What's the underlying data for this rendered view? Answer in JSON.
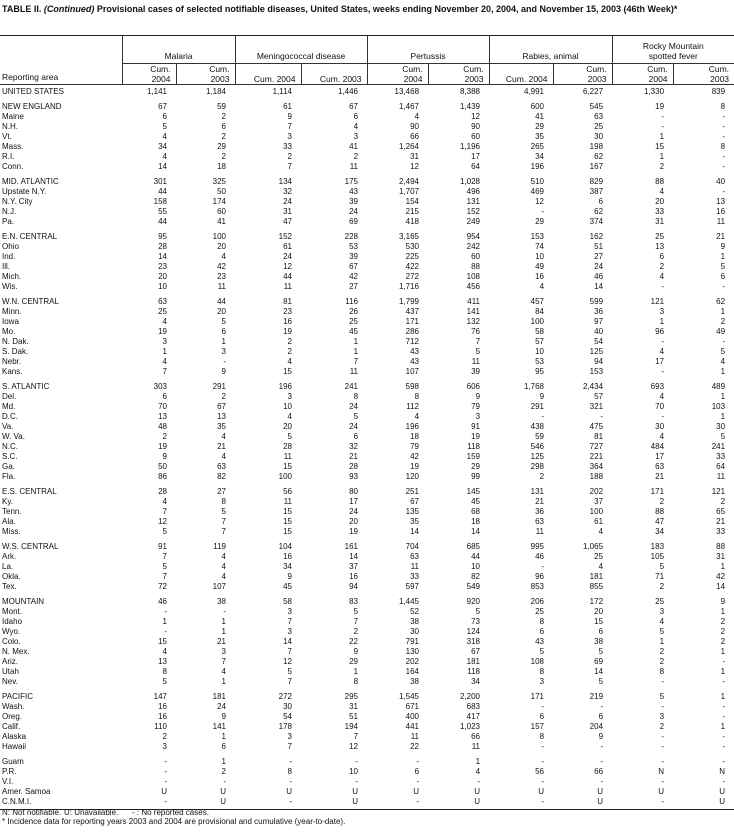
{
  "title": {
    "prefix": "TABLE II. ",
    "continued": "(Continued)",
    "text": " Provisional cases of selected notifiable diseases, United States, weeks ending November 20, 2004, and November 15, 2003 (46th Week)*"
  },
  "header": {
    "area_label": "Reporting area",
    "diseases": [
      "Malaria",
      "Meningococcal disease",
      "Pertussis",
      "Rabies, animal",
      "Rocky Mountain spotted fever"
    ],
    "subcols": [
      "Cum. 2004",
      "Cum. 2003"
    ]
  },
  "united_states": {
    "area": "UNITED STATES",
    "values": [
      "1,141",
      "1,184",
      "1,114",
      "1,446",
      "13,468",
      "8,388",
      "4,991",
      "6,227",
      "1,330",
      "839"
    ]
  },
  "groups": [
    {
      "rows": [
        {
          "area": "NEW ENGLAND",
          "values": [
            "67",
            "59",
            "61",
            "67",
            "1,467",
            "1,439",
            "600",
            "545",
            "19",
            "8"
          ]
        },
        {
          "area": "Maine",
          "values": [
            "6",
            "2",
            "9",
            "6",
            "4",
            "12",
            "41",
            "63",
            "-",
            "-"
          ]
        },
        {
          "area": "N.H.",
          "values": [
            "5",
            "6",
            "7",
            "4",
            "90",
            "90",
            "29",
            "25",
            "-",
            "-"
          ]
        },
        {
          "area": "Vt.",
          "values": [
            "4",
            "2",
            "3",
            "3",
            "66",
            "60",
            "35",
            "30",
            "1",
            "-"
          ]
        },
        {
          "area": "Mass.",
          "values": [
            "34",
            "29",
            "33",
            "41",
            "1,264",
            "1,196",
            "265",
            "198",
            "15",
            "8"
          ]
        },
        {
          "area": "R.I.",
          "values": [
            "4",
            "2",
            "2",
            "2",
            "31",
            "17",
            "34",
            "62",
            "1",
            "-"
          ]
        },
        {
          "area": "Conn.",
          "values": [
            "14",
            "18",
            "7",
            "11",
            "12",
            "64",
            "196",
            "167",
            "2",
            "-"
          ]
        }
      ]
    },
    {
      "rows": [
        {
          "area": "MID. ATLANTIC",
          "values": [
            "301",
            "325",
            "134",
            "175",
            "2,494",
            "1,028",
            "510",
            "829",
            "88",
            "40"
          ]
        },
        {
          "area": "Upstate N.Y.",
          "values": [
            "44",
            "50",
            "32",
            "43",
            "1,707",
            "496",
            "469",
            "387",
            "4",
            "-"
          ]
        },
        {
          "area": "N.Y. City",
          "values": [
            "158",
            "174",
            "24",
            "39",
            "154",
            "131",
            "12",
            "6",
            "20",
            "13"
          ]
        },
        {
          "area": "N.J.",
          "values": [
            "55",
            "60",
            "31",
            "24",
            "215",
            "152",
            "-",
            "62",
            "33",
            "16"
          ]
        },
        {
          "area": "Pa.",
          "values": [
            "44",
            "41",
            "47",
            "69",
            "418",
            "249",
            "29",
            "374",
            "31",
            "11"
          ]
        }
      ]
    },
    {
      "rows": [
        {
          "area": "E.N. CENTRAL",
          "values": [
            "95",
            "100",
            "152",
            "228",
            "3,165",
            "954",
            "153",
            "162",
            "25",
            "21"
          ]
        },
        {
          "area": "Ohio",
          "values": [
            "28",
            "20",
            "61",
            "53",
            "530",
            "242",
            "74",
            "51",
            "13",
            "9"
          ]
        },
        {
          "area": "Ind.",
          "values": [
            "14",
            "4",
            "24",
            "39",
            "225",
            "60",
            "10",
            "27",
            "6",
            "1"
          ]
        },
        {
          "area": "Ill.",
          "values": [
            "23",
            "42",
            "12",
            "67",
            "422",
            "88",
            "49",
            "24",
            "2",
            "5"
          ]
        },
        {
          "area": "Mich.",
          "values": [
            "20",
            "23",
            "44",
            "42",
            "272",
            "108",
            "16",
            "46",
            "4",
            "6"
          ]
        },
        {
          "area": "Wis.",
          "values": [
            "10",
            "11",
            "11",
            "27",
            "1,716",
            "456",
            "4",
            "14",
            "-",
            "-"
          ]
        }
      ]
    },
    {
      "rows": [
        {
          "area": "W.N. CENTRAL",
          "values": [
            "63",
            "44",
            "81",
            "116",
            "1,799",
            "411",
            "457",
            "599",
            "121",
            "62"
          ]
        },
        {
          "area": "Minn.",
          "values": [
            "25",
            "20",
            "23",
            "26",
            "437",
            "141",
            "84",
            "36",
            "3",
            "1"
          ]
        },
        {
          "area": "Iowa",
          "values": [
            "4",
            "5",
            "16",
            "25",
            "171",
            "132",
            "100",
            "97",
            "1",
            "2"
          ]
        },
        {
          "area": "Mo.",
          "values": [
            "19",
            "6",
            "19",
            "45",
            "286",
            "76",
            "58",
            "40",
            "96",
            "49"
          ]
        },
        {
          "area": "N. Dak.",
          "values": [
            "3",
            "1",
            "2",
            "1",
            "712",
            "7",
            "57",
            "54",
            "-",
            "-"
          ]
        },
        {
          "area": "S. Dak.",
          "values": [
            "1",
            "3",
            "2",
            "1",
            "43",
            "5",
            "10",
            "125",
            "4",
            "5"
          ]
        },
        {
          "area": "Nebr.",
          "values": [
            "4",
            "-",
            "4",
            "7",
            "43",
            "11",
            "53",
            "94",
            "17",
            "4"
          ]
        },
        {
          "area": "Kans.",
          "values": [
            "7",
            "9",
            "15",
            "11",
            "107",
            "39",
            "95",
            "153",
            "-",
            "1"
          ]
        }
      ]
    },
    {
      "rows": [
        {
          "area": "S. ATLANTIC",
          "values": [
            "303",
            "291",
            "196",
            "241",
            "598",
            "606",
            "1,768",
            "2,434",
            "693",
            "489"
          ]
        },
        {
          "area": "Del.",
          "values": [
            "6",
            "2",
            "3",
            "8",
            "8",
            "9",
            "9",
            "57",
            "4",
            "1"
          ]
        },
        {
          "area": "Md.",
          "values": [
            "70",
            "67",
            "10",
            "24",
            "112",
            "79",
            "291",
            "321",
            "70",
            "103"
          ]
        },
        {
          "area": "D.C.",
          "values": [
            "13",
            "13",
            "4",
            "5",
            "4",
            "3",
            "-",
            "-",
            "-",
            "1"
          ]
        },
        {
          "area": "Va.",
          "values": [
            "48",
            "35",
            "20",
            "24",
            "196",
            "91",
            "438",
            "475",
            "30",
            "30"
          ]
        },
        {
          "area": "W. Va.",
          "values": [
            "2",
            "4",
            "5",
            "6",
            "18",
            "19",
            "59",
            "81",
            "4",
            "5"
          ]
        },
        {
          "area": "N.C.",
          "values": [
            "19",
            "21",
            "28",
            "32",
            "79",
            "118",
            "546",
            "727",
            "484",
            "241"
          ]
        },
        {
          "area": "S.C.",
          "values": [
            "9",
            "4",
            "11",
            "21",
            "42",
            "159",
            "125",
            "221",
            "17",
            "33"
          ]
        },
        {
          "area": "Ga.",
          "values": [
            "50",
            "63",
            "15",
            "28",
            "19",
            "29",
            "298",
            "364",
            "63",
            "64"
          ]
        },
        {
          "area": "Fla.",
          "values": [
            "86",
            "82",
            "100",
            "93",
            "120",
            "99",
            "2",
            "188",
            "21",
            "11"
          ]
        }
      ]
    },
    {
      "rows": [
        {
          "area": "E.S. CENTRAL",
          "values": [
            "28",
            "27",
            "56",
            "80",
            "251",
            "145",
            "131",
            "202",
            "171",
            "121"
          ]
        },
        {
          "area": "Ky.",
          "values": [
            "4",
            "8",
            "11",
            "17",
            "67",
            "45",
            "21",
            "37",
            "2",
            "2"
          ]
        },
        {
          "area": "Tenn.",
          "values": [
            "7",
            "5",
            "15",
            "24",
            "135",
            "68",
            "36",
            "100",
            "88",
            "65"
          ]
        },
        {
          "area": "Ala.",
          "values": [
            "12",
            "7",
            "15",
            "20",
            "35",
            "18",
            "63",
            "61",
            "47",
            "21"
          ]
        },
        {
          "area": "Miss.",
          "values": [
            "5",
            "7",
            "15",
            "19",
            "14",
            "14",
            "11",
            "4",
            "34",
            "33"
          ]
        }
      ]
    },
    {
      "rows": [
        {
          "area": "W.S. CENTRAL",
          "values": [
            "91",
            "119",
            "104",
            "161",
            "704",
            "685",
            "995",
            "1,065",
            "183",
            "88"
          ]
        },
        {
          "area": "Ark.",
          "values": [
            "7",
            "4",
            "16",
            "14",
            "63",
            "44",
            "46",
            "25",
            "105",
            "31"
          ]
        },
        {
          "area": "La.",
          "values": [
            "5",
            "4",
            "34",
            "37",
            "11",
            "10",
            "-",
            "4",
            "5",
            "1"
          ]
        },
        {
          "area": "Okla.",
          "values": [
            "7",
            "4",
            "9",
            "16",
            "33",
            "82",
            "96",
            "181",
            "71",
            "42"
          ]
        },
        {
          "area": "Tex.",
          "values": [
            "72",
            "107",
            "45",
            "94",
            "597",
            "549",
            "853",
            "855",
            "2",
            "14"
          ]
        }
      ]
    },
    {
      "rows": [
        {
          "area": "MOUNTAIN",
          "values": [
            "46",
            "38",
            "58",
            "83",
            "1,445",
            "920",
            "206",
            "172",
            "25",
            "9"
          ]
        },
        {
          "area": "Mont.",
          "values": [
            "-",
            "-",
            "3",
            "5",
            "52",
            "5",
            "25",
            "20",
            "3",
            "1"
          ]
        },
        {
          "area": "Idaho",
          "values": [
            "1",
            "1",
            "7",
            "7",
            "38",
            "73",
            "8",
            "15",
            "4",
            "2"
          ]
        },
        {
          "area": "Wyo.",
          "values": [
            "-",
            "1",
            "3",
            "2",
            "30",
            "124",
            "6",
            "6",
            "5",
            "2"
          ]
        },
        {
          "area": "Colo.",
          "values": [
            "15",
            "21",
            "14",
            "22",
            "791",
            "318",
            "43",
            "38",
            "1",
            "2"
          ]
        },
        {
          "area": "N. Mex.",
          "values": [
            "4",
            "3",
            "7",
            "9",
            "130",
            "67",
            "5",
            "5",
            "2",
            "1"
          ]
        },
        {
          "area": "Ariz.",
          "values": [
            "13",
            "7",
            "12",
            "29",
            "202",
            "181",
            "108",
            "69",
            "2",
            "-"
          ]
        },
        {
          "area": "Utah",
          "values": [
            "8",
            "4",
            "5",
            "1",
            "164",
            "118",
            "8",
            "14",
            "8",
            "1"
          ]
        },
        {
          "area": "Nev.",
          "values": [
            "5",
            "1",
            "7",
            "8",
            "38",
            "34",
            "3",
            "5",
            "-",
            "-"
          ]
        }
      ]
    },
    {
      "rows": [
        {
          "area": "PACIFIC",
          "values": [
            "147",
            "181",
            "272",
            "295",
            "1,545",
            "2,200",
            "171",
            "219",
            "5",
            "1"
          ]
        },
        {
          "area": "Wash.",
          "values": [
            "16",
            "24",
            "30",
            "31",
            "671",
            "683",
            "-",
            "-",
            "-",
            "-"
          ]
        },
        {
          "area": "Oreg.",
          "values": [
            "16",
            "9",
            "54",
            "51",
            "400",
            "417",
            "6",
            "6",
            "3",
            "-"
          ]
        },
        {
          "area": "Calif.",
          "values": [
            "110",
            "141",
            "178",
            "194",
            "441",
            "1,023",
            "157",
            "204",
            "2",
            "1"
          ]
        },
        {
          "area": "Alaska",
          "values": [
            "2",
            "1",
            "3",
            "7",
            "11",
            "66",
            "8",
            "9",
            "-",
            "-"
          ]
        },
        {
          "area": "Hawaii",
          "values": [
            "3",
            "6",
            "7",
            "12",
            "22",
            "11",
            "-",
            "-",
            "-",
            "-"
          ]
        }
      ]
    },
    {
      "rows": [
        {
          "area": "Guam",
          "values": [
            "-",
            "1",
            "-",
            "-",
            "-",
            "1",
            "-",
            "-",
            "-",
            "-"
          ]
        },
        {
          "area": "P.R.",
          "values": [
            "-",
            "2",
            "8",
            "10",
            "6",
            "4",
            "56",
            "66",
            "N",
            "N"
          ]
        },
        {
          "area": "V.I.",
          "values": [
            "-",
            "-",
            "-",
            "-",
            "-",
            "-",
            "-",
            "-",
            "-",
            "-"
          ]
        },
        {
          "area": "Amer. Samoa",
          "values": [
            "U",
            "U",
            "U",
            "U",
            "U",
            "U",
            "U",
            "U",
            "U",
            "U"
          ]
        },
        {
          "area": "C.N.M.I.",
          "values": [
            "-",
            "U",
            "-",
            "U",
            "-",
            "U",
            "-",
            "U",
            "-",
            "U"
          ]
        }
      ]
    }
  ],
  "footer": {
    "legend_n": "N: Not notifiable.",
    "legend_u": "U: Unavailable.",
    "legend_dash": "- : No reported cases.",
    "note": "* Incidence data for reporting years 2003 and 2004 are provisional and cumulative (year-to-date)."
  }
}
